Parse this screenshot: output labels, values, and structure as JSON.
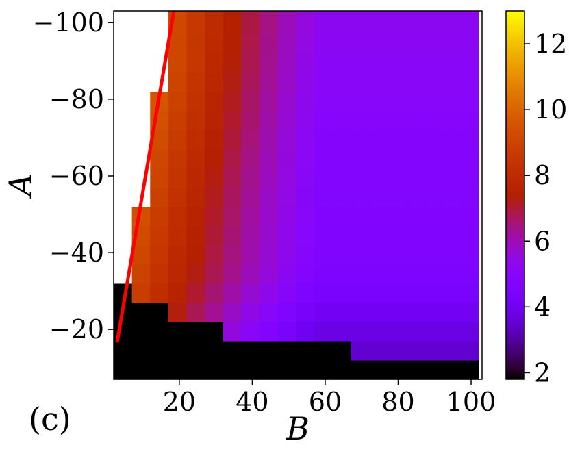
{
  "chart_data": {
    "type": "heatmap",
    "panel_label": "(c)",
    "xlabel": "B",
    "ylabel": "A",
    "x_range": [
      2,
      103
    ],
    "y_range": [
      -7,
      -103
    ],
    "x_ticks": [
      20,
      40,
      60,
      80,
      100
    ],
    "x_tick_labels": [
      "20",
      "40",
      "60",
      "80",
      "100"
    ],
    "y_ticks": [
      -20,
      -40,
      -60,
      -80,
      -100
    ],
    "y_tick_labels": [
      "−20",
      "−40",
      "−60",
      "−80",
      "−100"
    ],
    "colormap": "gnuplot",
    "colorbar_range": [
      1.8,
      13
    ],
    "colorbar_ticks": [
      2,
      4,
      6,
      8,
      10,
      12
    ],
    "colorbar_tick_labels": [
      "2",
      "4",
      "6",
      "8",
      "10",
      "12"
    ],
    "grid": {
      "nx": 20,
      "ny": 20,
      "x_start": 2,
      "x_step": 5,
      "y_start": -7,
      "y_step": -5
    },
    "line": {
      "color": "#ff0000",
      "points": [
        [
          3,
          -17
        ],
        [
          18.5,
          -103
        ]
      ]
    },
    "colors": {
      "missing": "#ffffff",
      "low_region": "#000000",
      "line": "#ff0000"
    }
  }
}
